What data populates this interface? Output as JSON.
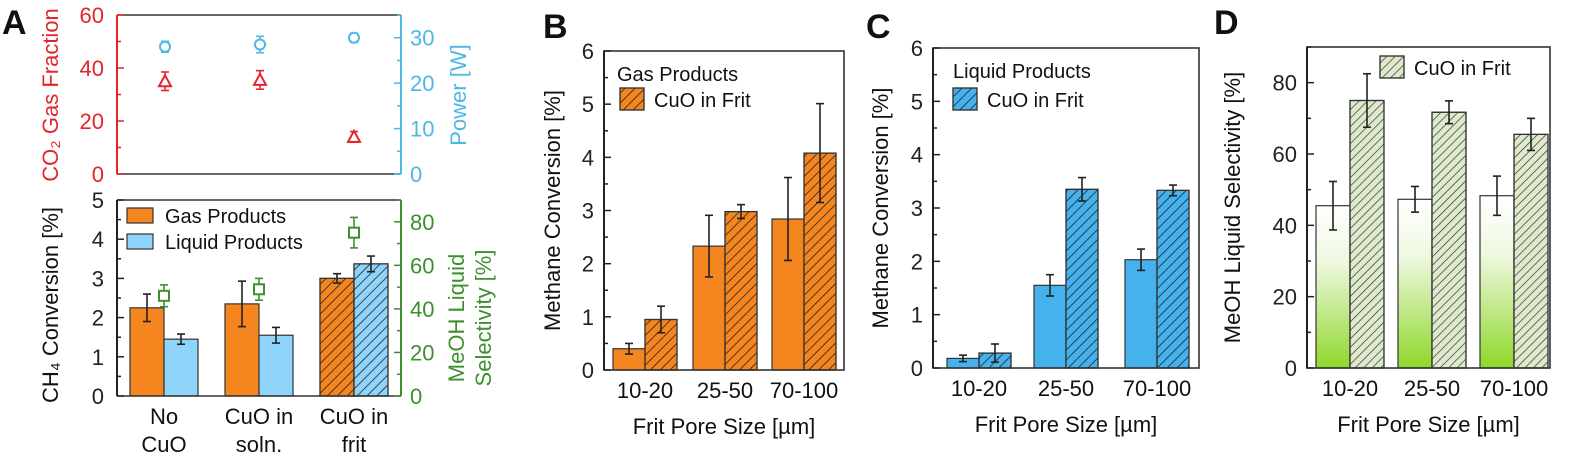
{
  "figure": {
    "panel_labels": [
      "A",
      "B",
      "C",
      "D"
    ]
  },
  "colors": {
    "gas": "#f5861f",
    "liquid_a": "#8ed4fb",
    "liquid": "#45b2ee",
    "co2": "#e5242b",
    "power": "#4db7e5",
    "selectivity": "#3e8f2f",
    "sel_bar_top": "#ffffff",
    "sel_bar_bottom": "#8fd82a",
    "sel_hatch": "#dfe9cf"
  },
  "chart_data": [
    {
      "panel": "A-top",
      "type": "scatter",
      "categories": [
        "No CuO",
        "CuO in soln.",
        "CuO in frit"
      ],
      "left_axis": {
        "label": "CO₂ Gas Fraction",
        "ylim": [
          0,
          60
        ],
        "ticks": [
          0,
          20,
          40,
          60
        ]
      },
      "right_axis": {
        "label": "Power [W]",
        "ylim": [
          0,
          35
        ],
        "ticks": [
          0,
          10,
          20,
          30
        ]
      },
      "series": [
        {
          "axis": "left",
          "marker": "triangle",
          "color": "co2",
          "values": [
            35,
            35.5,
            14
          ],
          "errors": [
            3.5,
            3.5,
            2
          ]
        },
        {
          "axis": "right",
          "marker": "circle",
          "color": "power",
          "values": [
            28,
            28.5,
            30
          ],
          "errors": [
            1.2,
            1.8,
            1
          ]
        }
      ]
    },
    {
      "panel": "A-bottom",
      "type": "bar",
      "categories": [
        [
          "No",
          "CuO"
        ],
        [
          "CuO in",
          "soln."
        ],
        [
          "CuO in",
          "frit"
        ]
      ],
      "ylabel": "CH₄ Conversion [%]",
      "ylim": [
        0,
        5
      ],
      "ticks": [
        0,
        1,
        2,
        3,
        4,
        5
      ],
      "right_axis": {
        "label": [
          "MeOH  Liquid",
          "Selectivity [%]"
        ],
        "ylim": [
          0,
          90
        ],
        "ticks": [
          0,
          20,
          40,
          60,
          80
        ]
      },
      "legend": [
        "Gas Products",
        "Liquid Products"
      ],
      "legend_position": "top-left",
      "series": [
        {
          "name": "Gas Products",
          "color": "gas",
          "values": [
            2.25,
            2.35,
            3.0
          ],
          "errors": [
            0.35,
            0.58,
            0.12
          ],
          "hatched": [
            false,
            false,
            true
          ]
        },
        {
          "name": "Liquid Products",
          "color": "liquid_a",
          "values": [
            1.45,
            1.55,
            3.37
          ],
          "errors": [
            0.13,
            0.2,
            0.2
          ],
          "hatched": [
            false,
            false,
            true
          ]
        }
      ],
      "selectivity_points": {
        "marker": "square",
        "color": "selectivity",
        "values": [
          46,
          49,
          75
        ],
        "errors": [
          5,
          5,
          7
        ]
      }
    },
    {
      "panel": "B",
      "type": "bar",
      "categories": [
        "10-20",
        "25-50",
        "70-100"
      ],
      "title": "Gas Products",
      "legend": [
        "CuO in Frit"
      ],
      "legend_position": "top-left",
      "xlabel": "Frit Pore Size [µm]",
      "ylabel": "Methane Conversion [%]",
      "ylim": [
        0,
        6
      ],
      "ticks": [
        0,
        1,
        2,
        3,
        4,
        5,
        6
      ],
      "series": [
        {
          "color": "gas",
          "hatched": false,
          "values": [
            0.4,
            2.33,
            2.84
          ],
          "errors": [
            0.1,
            0.58,
            0.78
          ]
        },
        {
          "name": "CuO in Frit",
          "color": "gas",
          "hatched": true,
          "values": [
            0.95,
            2.98,
            4.08
          ],
          "errors": [
            0.25,
            0.13,
            0.93
          ]
        }
      ]
    },
    {
      "panel": "C",
      "type": "bar",
      "categories": [
        "10-20",
        "25-50",
        "70-100"
      ],
      "title": "Liquid Products",
      "legend": [
        "CuO in Frit"
      ],
      "legend_position": "top-left",
      "xlabel": "Frit Pore Size [µm]",
      "ylabel": "Methane Conversion [%]",
      "ylim": [
        0,
        6
      ],
      "ticks": [
        0,
        1,
        2,
        3,
        4,
        5,
        6
      ],
      "series": [
        {
          "color": "liquid",
          "hatched": false,
          "values": [
            0.18,
            1.55,
            2.03
          ],
          "errors": [
            0.06,
            0.2,
            0.2
          ]
        },
        {
          "name": "CuO in Frit",
          "color": "liquid",
          "hatched": true,
          "values": [
            0.28,
            3.35,
            3.33
          ],
          "errors": [
            0.17,
            0.22,
            0.1
          ]
        }
      ]
    },
    {
      "panel": "D",
      "type": "bar",
      "categories": [
        "10-20",
        "25-50",
        "70-100"
      ],
      "legend": [
        "CuO in Frit"
      ],
      "legend_position": "top-right",
      "xlabel": "Frit Pore Size [µm]",
      "ylabel": "MeOH Liquid Selectivity [%]",
      "ylim": [
        0,
        90
      ],
      "ticks": [
        0,
        20,
        40,
        60,
        80
      ],
      "series": [
        {
          "color": "sel_gradient",
          "hatched": false,
          "values": [
            45.5,
            47.3,
            48.3
          ],
          "errors": [
            6.8,
            3.6,
            5.5
          ]
        },
        {
          "name": "CuO in Frit",
          "color": "sel_hatch",
          "hatched": true,
          "values": [
            75,
            71.7,
            65.5
          ],
          "errors": [
            7.5,
            3.2,
            4.5
          ]
        }
      ]
    }
  ]
}
